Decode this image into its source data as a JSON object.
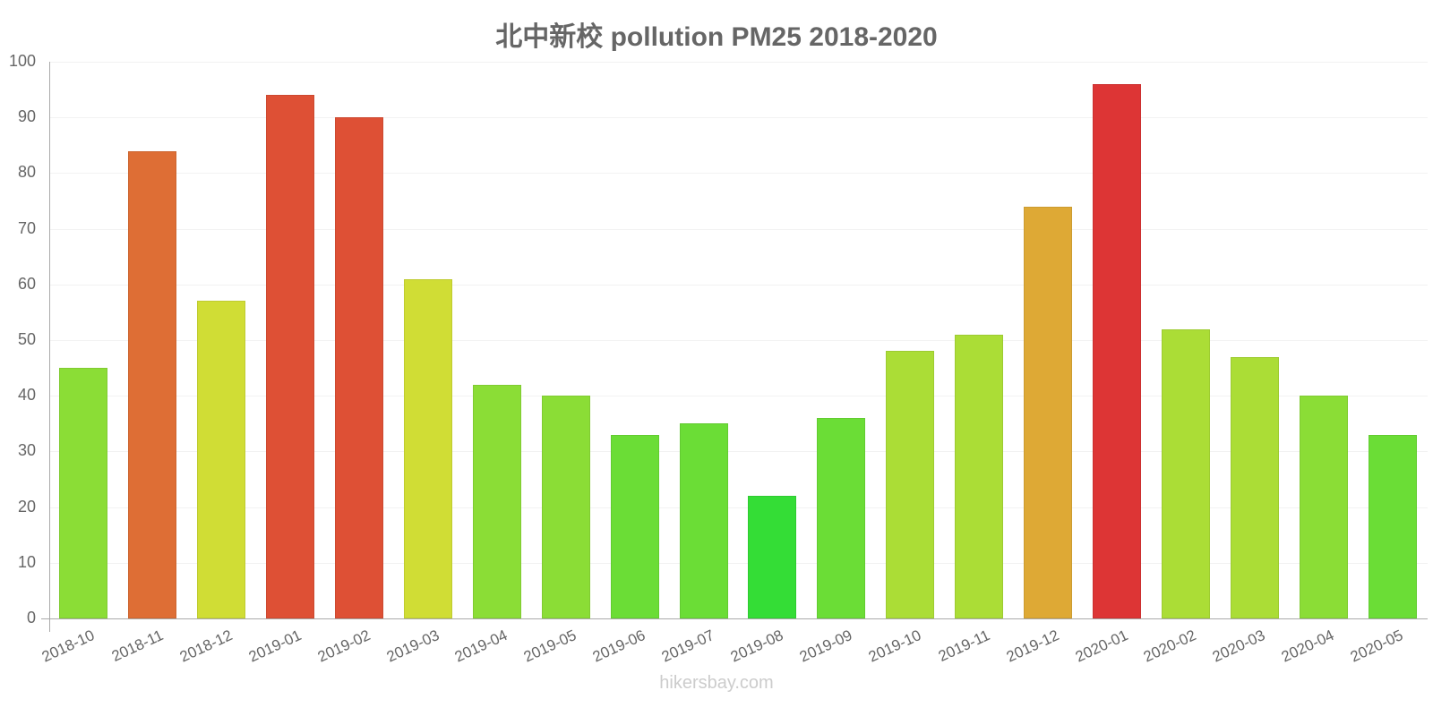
{
  "chart_data": {
    "type": "bar",
    "title": "北中新校 pollution PM25 2018-2020",
    "xlabel": "",
    "ylabel": "",
    "ylim": [
      0,
      100
    ],
    "yticks": [
      0,
      10,
      20,
      30,
      40,
      50,
      60,
      70,
      80,
      90,
      100
    ],
    "grid": true,
    "legend": null,
    "categories": [
      "2018-10",
      "2018-11",
      "2018-12",
      "2019-01",
      "2019-02",
      "2019-03",
      "2019-04",
      "2019-05",
      "2019-06",
      "2019-07",
      "2019-08",
      "2019-09",
      "2019-10",
      "2019-11",
      "2019-12",
      "2020-01",
      "2020-02",
      "2020-03",
      "2020-04",
      "2020-05"
    ],
    "values": [
      45,
      84,
      57,
      94,
      90,
      61,
      42,
      40,
      33,
      35,
      22,
      36,
      48,
      51,
      74,
      96,
      52,
      47,
      40,
      33
    ],
    "colors": [
      "#8bdd36",
      "#de6e35",
      "#d0dd35",
      "#de5035",
      "#de5035",
      "#d0dd35",
      "#8bdd36",
      "#8bdd36",
      "#6bdd36",
      "#6bdd36",
      "#34dd36",
      "#6bdd36",
      "#abdd36",
      "#abdd36",
      "#dea935",
      "#dd3535",
      "#abdd36",
      "#abdd36",
      "#8bdd36",
      "#6bdd36"
    ]
  },
  "watermark": "hikersbay.com"
}
